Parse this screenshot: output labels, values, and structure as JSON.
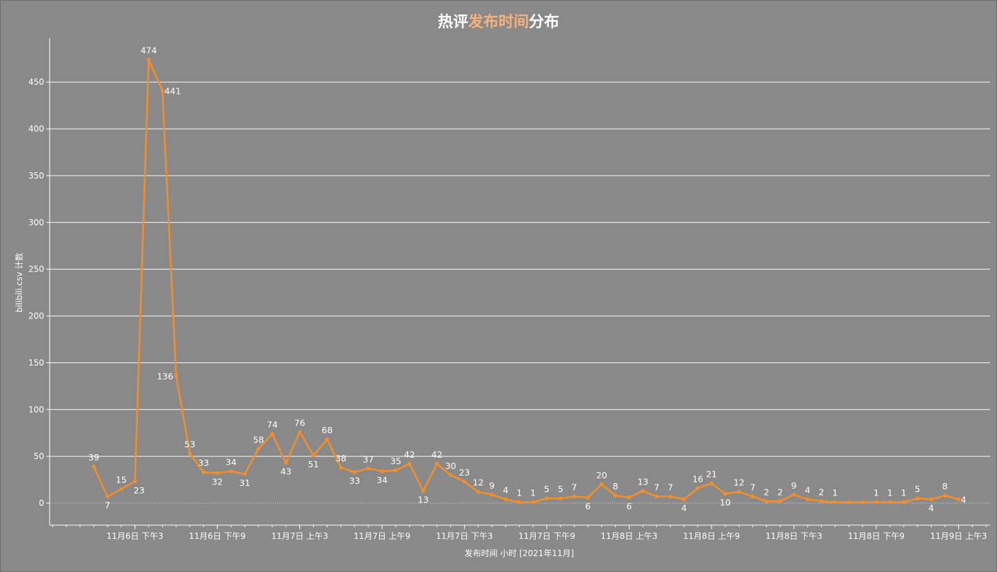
{
  "title": {
    "part1": "热评",
    "part2": "发布时间",
    "part3": "分布"
  },
  "colors": {
    "background": "#898989",
    "line": "#f28e2b",
    "grid": "#ffffff",
    "title_highlight": "#f7b27a"
  },
  "chart_data": {
    "type": "line",
    "title": "热评发布时间分布",
    "xlabel": "发布时间 小时 [2021年11月]",
    "ylabel": "bilibili.csv 计数",
    "ylim": [
      -25,
      495
    ],
    "yticks": [
      0,
      50,
      100,
      150,
      200,
      250,
      300,
      350,
      400,
      450
    ],
    "x_start_hour": 12,
    "x_tick_labels": [
      {
        "hour": 15,
        "label": "11月6日 下午3"
      },
      {
        "hour": 21,
        "label": "11月6日 下午9"
      },
      {
        "hour": 27,
        "label": "11月7日 上午3"
      },
      {
        "hour": 33,
        "label": "11月7日 上午9"
      },
      {
        "hour": 39,
        "label": "11月7日 下午3"
      },
      {
        "hour": 45,
        "label": "11月7日 下午9"
      },
      {
        "hour": 51,
        "label": "11月8日 上午3"
      },
      {
        "hour": 57,
        "label": "11月8日 上午9"
      },
      {
        "hour": 63,
        "label": "11月8日 下午3"
      },
      {
        "hour": 69,
        "label": "11月8日 下午9"
      },
      {
        "hour": 75,
        "label": "11月9日 上午3"
      }
    ],
    "series": [
      {
        "values": [
          39,
          7,
          15,
          23,
          474,
          441,
          136,
          53,
          33,
          32,
          34,
          31,
          58,
          74,
          43,
          76,
          51,
          68,
          38,
          33,
          37,
          34,
          35,
          42,
          13,
          42,
          30,
          23,
          12,
          9,
          4,
          1,
          1,
          5,
          5,
          7,
          6,
          20,
          8,
          6,
          13,
          7,
          7,
          4,
          16,
          21,
          10,
          12,
          7,
          2,
          2,
          9,
          4,
          2,
          1,
          1,
          1,
          1,
          1,
          1,
          5,
          4,
          8,
          4
        ],
        "labels": [
          "39",
          "7",
          "15",
          "23",
          "474",
          "441",
          "136",
          "53",
          "33",
          "32",
          "34",
          "31",
          "58",
          "74",
          "43",
          "76",
          "51",
          "68",
          "38",
          "33",
          "37",
          "34",
          "35",
          "42",
          "13",
          "42",
          "30",
          "23",
          "12",
          "9",
          "4",
          "1",
          "1",
          "5",
          "5",
          "7",
          "6",
          "20",
          "8",
          "6",
          "13",
          "7",
          "7",
          "4",
          "16",
          "21",
          "10",
          "12",
          "7",
          "2",
          "2",
          "9",
          "4",
          "2",
          "1",
          "",
          "",
          "1",
          "1",
          "1",
          "5",
          "4",
          "8",
          "4"
        ]
      }
    ]
  }
}
